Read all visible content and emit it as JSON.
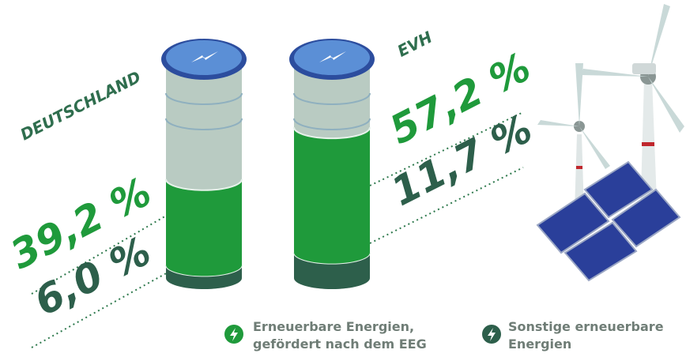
{
  "chart_data": {
    "type": "battery",
    "categories": [
      "DEUTSCHLAND",
      "EVH"
    ],
    "series": [
      {
        "name": "Sonstige erneuerbare Energien",
        "color": "#2d5f4b",
        "values": [
          6.0,
          11.7
        ],
        "value_labels": [
          "6,0 %",
          "11,7 %"
        ]
      },
      {
        "name": "Erneuerbare Energien, gefördert nach dem EEG",
        "color": "#1f9a3b",
        "values": [
          39.2,
          57.2
        ],
        "value_labels": [
          "39,2 %",
          "57,2 %"
        ]
      }
    ],
    "ylim": [
      0,
      100
    ]
  }
}
